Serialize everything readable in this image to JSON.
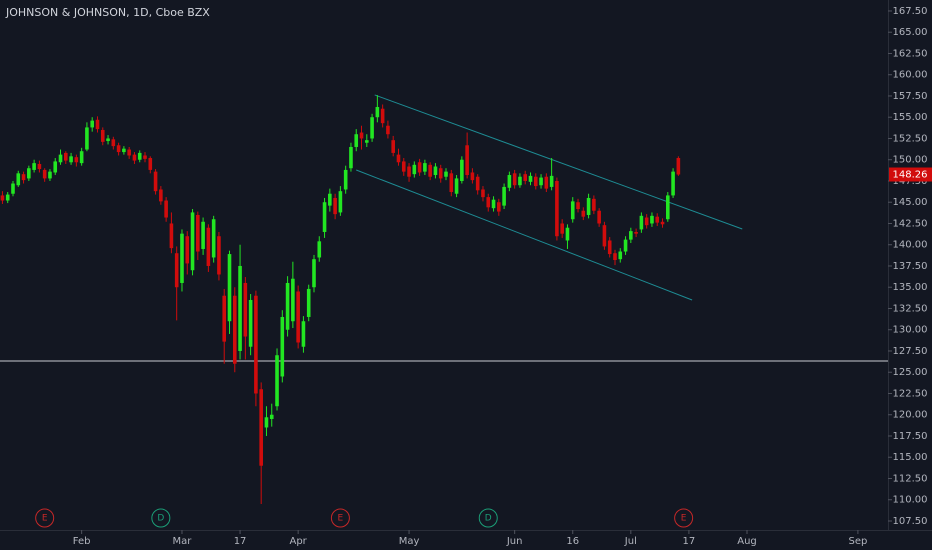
{
  "chart_data": {
    "type": "candlestick",
    "title": "JOHNSON & JOHNSON, 1D, Cboe BZX",
    "up_color": "#22e622",
    "down_color": "#d10c0c",
    "open": [
      145.8,
      145.2,
      146.0,
      147.0,
      148.3,
      147.8,
      148.8,
      149.5,
      148.8,
      147.8,
      148.5,
      149.7,
      150.8,
      149.7,
      150.3,
      149.6,
      151.2,
      153.8,
      154.7,
      153.5,
      152.2,
      152.4,
      151.7,
      150.9,
      151.2,
      150.6,
      150.0,
      150.5,
      150.2,
      148.6,
      146.5,
      145.2,
      142.5,
      139.0,
      135.5,
      141.0,
      137.0,
      143.5,
      139.5,
      142.0,
      138.5,
      141.0,
      134.0,
      131.0,
      134.0,
      127.5,
      135.5,
      128.0,
      134.0,
      123.0,
      118.5,
      119.5,
      121.0,
      124.5,
      130.0,
      131.0,
      134.5,
      128.0,
      131.5,
      135.0,
      138.5,
      141.5,
      144.6,
      145.5,
      143.8,
      146.5,
      149.0,
      151.5,
      153.2,
      152.0,
      152.5,
      155.0,
      156.0,
      154.0,
      152.3,
      150.6,
      149.8,
      149.2,
      148.3,
      149.7,
      148.6,
      149.4,
      148.2,
      149.0,
      148.0,
      148.4,
      146.0,
      147.5,
      151.7,
      148.5,
      148.0,
      146.5,
      145.6,
      144.3,
      145.0,
      144.6,
      146.7,
      148.4,
      147.0,
      148.3,
      147.4,
      148.0,
      147.0,
      148.0,
      146.8,
      147.5,
      142.5,
      140.5,
      143.0,
      145.0,
      144.0,
      143.5,
      145.4,
      144.0,
      142.3,
      140.5,
      139.0,
      138.3,
      139.2,
      140.6,
      141.5,
      141.8,
      143.2,
      142.5,
      143.3,
      142.7,
      143.0,
      145.8,
      150.2
    ],
    "high": [
      146.3,
      146.2,
      147.5,
      148.7,
      148.6,
      149.3,
      150.0,
      149.9,
      149.0,
      148.9,
      150.2,
      151.2,
      151.0,
      150.8,
      150.6,
      151.4,
      154.4,
      155.0,
      155.1,
      153.8,
      152.9,
      152.7,
      152.0,
      151.6,
      151.5,
      150.9,
      151.1,
      150.9,
      150.4,
      148.9,
      146.9,
      145.6,
      143.8,
      139.8,
      141.8,
      141.6,
      144.2,
      143.9,
      143.2,
      142.4,
      143.4,
      141.5,
      134.8,
      139.3,
      135.0,
      140.0,
      136.2,
      134.2,
      134.6,
      123.8,
      121.0,
      121.3,
      127.8,
      132.3,
      136.3,
      138.0,
      135.2,
      131.6,
      135.3,
      138.8,
      141.0,
      145.5,
      146.6,
      146.0,
      146.9,
      149.3,
      152.0,
      153.6,
      154.0,
      153.0,
      155.4,
      157.6,
      156.5,
      154.6,
      152.8,
      151.3,
      150.2,
      149.6,
      149.8,
      150.1,
      150.0,
      149.7,
      149.6,
      149.4,
      149.0,
      148.8,
      148.2,
      150.4,
      153.2,
      149.0,
      148.3,
      146.9,
      146.0,
      145.7,
      145.4,
      147.2,
      148.6,
      148.8,
      148.4,
      148.7,
      148.5,
      148.4,
      148.3,
      148.4,
      150.2,
      147.9,
      143.0,
      142.4,
      145.6,
      145.4,
      144.4,
      146.0,
      145.8,
      144.3,
      142.7,
      140.9,
      139.4,
      139.6,
      141.0,
      142.0,
      141.9,
      143.8,
      143.6,
      143.8,
      143.7,
      143.1,
      146.2,
      149.0,
      150.4
    ],
    "low": [
      144.8,
      144.9,
      145.7,
      146.8,
      147.2,
      147.5,
      148.5,
      148.5,
      147.4,
      147.5,
      148.2,
      149.4,
      149.5,
      149.4,
      149.2,
      149.3,
      151.0,
      153.3,
      153.2,
      151.7,
      151.8,
      151.2,
      150.5,
      150.6,
      150.1,
      149.5,
      149.7,
      149.7,
      148.4,
      145.9,
      144.7,
      142.7,
      139.0,
      131.1,
      134.5,
      136.5,
      136.4,
      138.2,
      138.8,
      136.8,
      137.9,
      135.8,
      126.0,
      129.5,
      125.0,
      126.5,
      126.5,
      127.0,
      121.0,
      109.5,
      117.5,
      118.6,
      120.5,
      123.8,
      129.2,
      130.2,
      127.8,
      127.3,
      131.0,
      134.4,
      138.0,
      140.8,
      143.9,
      143.0,
      143.4,
      146.0,
      148.6,
      151.0,
      151.2,
      151.5,
      152.1,
      154.4,
      153.8,
      152.5,
      150.4,
      149.3,
      148.1,
      147.4,
      147.9,
      148.1,
      148.2,
      147.6,
      147.8,
      147.3,
      147.6,
      145.7,
      145.6,
      147.2,
      147.8,
      147.2,
      145.9,
      145.1,
      143.9,
      143.9,
      143.4,
      144.2,
      146.3,
      146.6,
      146.7,
      147.1,
      147.0,
      146.5,
      146.6,
      146.2,
      146.4,
      140.5,
      140.8,
      139.5,
      142.6,
      143.8,
      142.9,
      143.1,
      143.6,
      142.1,
      139.4,
      138.5,
      137.6,
      137.9,
      138.8,
      140.2,
      140.9,
      141.4,
      141.9,
      142.1,
      142.2,
      142.0,
      142.7,
      145.5,
      148.1
    ],
    "close": [
      145.2,
      145.9,
      147.2,
      148.4,
      147.6,
      149.0,
      149.6,
      148.9,
      147.8,
      148.6,
      149.8,
      150.6,
      149.9,
      150.4,
      149.7,
      151.0,
      153.8,
      154.6,
      153.6,
      152.1,
      152.5,
      151.6,
      150.9,
      151.3,
      150.5,
      149.9,
      150.8,
      150.1,
      148.8,
      146.3,
      145.1,
      143.2,
      139.6,
      135.0,
      141.3,
      137.8,
      143.8,
      139.2,
      142.7,
      137.5,
      143.0,
      136.5,
      128.6,
      138.9,
      126.0,
      137.5,
      129.2,
      133.5,
      122.5,
      114.0,
      119.7,
      120.0,
      127.0,
      131.5,
      135.5,
      136.0,
      128.5,
      131.0,
      134.8,
      138.3,
      140.4,
      145.0,
      146.0,
      143.6,
      146.3,
      148.8,
      151.5,
      153.0,
      152.5,
      152.3,
      155.0,
      156.2,
      154.3,
      153.0,
      150.8,
      149.7,
      148.6,
      148.0,
      149.4,
      148.5,
      149.6,
      148.0,
      149.2,
      147.8,
      148.6,
      146.2,
      147.8,
      150.0,
      148.2,
      147.6,
      146.4,
      145.6,
      144.4,
      145.3,
      143.9,
      146.8,
      148.2,
      147.0,
      148.0,
      147.5,
      148.1,
      146.9,
      147.9,
      146.6,
      148.1,
      141.0,
      141.3,
      142.0,
      145.1,
      144.2,
      143.3,
      145.5,
      144.0,
      142.5,
      139.8,
      138.9,
      138.2,
      139.2,
      140.6,
      141.6,
      141.3,
      143.4,
      142.3,
      143.4,
      142.6,
      142.4,
      145.8,
      148.6,
      148.26
    ],
    "xlim": [
      -0.46,
      167.7
    ],
    "xticks": [
      {
        "value": 15,
        "label": "Feb"
      },
      {
        "value": 34,
        "label": "Mar"
      },
      {
        "value": 45,
        "label": "17"
      },
      {
        "value": 56,
        "label": "Apr"
      },
      {
        "value": 77,
        "label": "May"
      },
      {
        "value": 97,
        "label": "Jun"
      },
      {
        "value": 108,
        "label": "16"
      },
      {
        "value": 119,
        "label": "Jul"
      },
      {
        "value": 130,
        "label": "17"
      },
      {
        "value": 141,
        "label": "Aug"
      },
      {
        "value": 162,
        "label": "Sep"
      }
    ],
    "ylim": [
      106.44,
      168.79
    ],
    "yticks": [
      {
        "value": 107.5,
        "label": "107.50"
      },
      {
        "value": 110,
        "label": "110.00"
      },
      {
        "value": 112.5,
        "label": "112.50"
      },
      {
        "value": 115,
        "label": "115.00"
      },
      {
        "value": 117.5,
        "label": "117.50"
      },
      {
        "value": 120,
        "label": "120.00"
      },
      {
        "value": 122.5,
        "label": "122.50"
      },
      {
        "value": 125,
        "label": "125.00"
      },
      {
        "value": 127.5,
        "label": "127.50"
      },
      {
        "value": 130,
        "label": "130.00"
      },
      {
        "value": 132.5,
        "label": "132.50"
      },
      {
        "value": 135,
        "label": "135.00"
      },
      {
        "value": 137.5,
        "label": "137.50"
      },
      {
        "value": 140,
        "label": "140.00"
      },
      {
        "value": 142.5,
        "label": "142.50"
      },
      {
        "value": 145,
        "label": "145.00"
      },
      {
        "value": 147.5,
        "label": "147.50"
      },
      {
        "value": 150,
        "label": "150.00"
      },
      {
        "value": 152.5,
        "label": "152.50"
      },
      {
        "value": 155,
        "label": "155.00"
      },
      {
        "value": 157.5,
        "label": "157.50"
      },
      {
        "value": 160,
        "label": "160.00"
      },
      {
        "value": 162.5,
        "label": "162.50"
      },
      {
        "value": 165,
        "label": "165.00"
      },
      {
        "value": 167.5,
        "label": "167.50"
      }
    ],
    "hline": {
      "value": 126.32,
      "color": "#c8cbd2"
    },
    "trend_lines": [
      {
        "x": [
          70.5,
          140.1
        ],
        "y": [
          157.62,
          141.85
        ],
        "color": "#1e8c94"
      },
      {
        "x": [
          67.0,
          130.6
        ],
        "y": [
          148.79,
          133.5
        ],
        "color": "#1e8c94"
      }
    ],
    "events": [
      {
        "label": "E",
        "x": 8,
        "color": "#c62828"
      },
      {
        "label": "D",
        "x": 30,
        "color": "#1b9e77"
      },
      {
        "label": "E",
        "x": 64,
        "color": "#c62828"
      },
      {
        "label": "D",
        "x": 92,
        "color": "#1b9e77"
      },
      {
        "label": "E",
        "x": 129,
        "color": "#c62828"
      }
    ]
  }
}
